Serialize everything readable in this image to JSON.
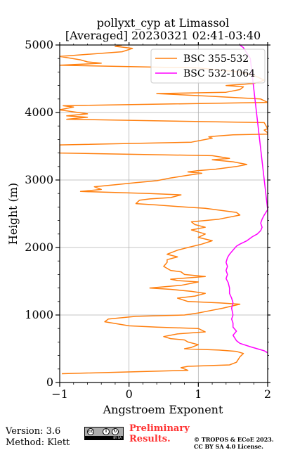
{
  "chart_data": {
    "type": "line",
    "title_line1": "pollyxt_cyp at Limassol",
    "title_line2": "[Averaged] 20230321 02:41-03:40",
    "xlabel": "Angstroem Exponent",
    "ylabel": "Height (m)",
    "xlim": [
      -1,
      2
    ],
    "ylim": [
      0,
      5000
    ],
    "xticks": [
      -1,
      0,
      1,
      2
    ],
    "yticks": [
      0,
      1000,
      2000,
      3000,
      4000,
      5000
    ],
    "grid": true,
    "legend_position": "top-right",
    "series": [
      {
        "name": "BSC 355-532",
        "color": "#ff7f0e",
        "points": [
          [
            -0.97,
            130
          ],
          [
            0.85,
            180
          ],
          [
            0.75,
            220
          ],
          [
            0.85,
            240
          ],
          [
            1.45,
            260
          ],
          [
            1.55,
            300
          ],
          [
            1.6,
            380
          ],
          [
            1.62,
            400
          ],
          [
            1.65,
            430
          ],
          [
            1.55,
            460
          ],
          [
            1.3,
            480
          ],
          [
            0.8,
            500
          ],
          [
            0.9,
            520
          ],
          [
            1.0,
            560
          ],
          [
            0.85,
            600
          ],
          [
            0.8,
            630
          ],
          [
            0.6,
            650
          ],
          [
            0.5,
            680
          ],
          [
            0.7,
            720
          ],
          [
            1.1,
            750
          ],
          [
            1.0,
            800
          ],
          [
            0.4,
            820
          ],
          [
            0.0,
            840
          ],
          [
            -0.35,
            900
          ],
          [
            -0.3,
            940
          ],
          [
            0.1,
            980
          ],
          [
            0.8,
            1000
          ],
          [
            1.0,
            1030
          ],
          [
            1.15,
            1060
          ],
          [
            1.35,
            1100
          ],
          [
            1.6,
            1160
          ],
          [
            1.3,
            1180
          ],
          [
            0.85,
            1200
          ],
          [
            0.7,
            1250
          ],
          [
            0.95,
            1280
          ],
          [
            1.1,
            1320
          ],
          [
            0.9,
            1350
          ],
          [
            0.6,
            1380
          ],
          [
            0.3,
            1400
          ],
          [
            0.75,
            1440
          ],
          [
            1.0,
            1490
          ],
          [
            0.7,
            1510
          ],
          [
            0.6,
            1530
          ],
          [
            1.1,
            1570
          ],
          [
            0.8,
            1600
          ],
          [
            0.75,
            1640
          ],
          [
            0.6,
            1660
          ],
          [
            0.5,
            1720
          ],
          [
            0.55,
            1780
          ],
          [
            0.55,
            1820
          ],
          [
            0.7,
            1860
          ],
          [
            0.55,
            1900
          ],
          [
            0.7,
            1960
          ],
          [
            0.85,
            2000
          ],
          [
            1.05,
            2050
          ],
          [
            1.2,
            2100
          ],
          [
            1.0,
            2150
          ],
          [
            1.1,
            2200
          ],
          [
            0.9,
            2260
          ],
          [
            1.1,
            2300
          ],
          [
            0.95,
            2340
          ],
          [
            0.9,
            2380
          ],
          [
            1.3,
            2420
          ],
          [
            1.6,
            2480
          ],
          [
            1.55,
            2520
          ],
          [
            1.1,
            2580
          ],
          [
            0.8,
            2600
          ],
          [
            0.4,
            2630
          ],
          [
            0.1,
            2650
          ],
          [
            0.15,
            2700
          ],
          [
            0.3,
            2720
          ],
          [
            0.6,
            2740
          ],
          [
            0.75,
            2780
          ],
          [
            0.3,
            2800
          ],
          [
            -0.7,
            2830
          ],
          [
            -0.4,
            2860
          ],
          [
            -0.5,
            2900
          ],
          [
            -0.2,
            2930
          ],
          [
            0.1,
            2960
          ],
          [
            0.4,
            2990
          ],
          [
            0.6,
            3030
          ],
          [
            0.85,
            3070
          ],
          [
            1.05,
            3100
          ],
          [
            0.85,
            3120
          ],
          [
            1.0,
            3140
          ],
          [
            1.25,
            3160
          ],
          [
            1.55,
            3200
          ],
          [
            1.7,
            3230
          ],
          [
            1.5,
            3270
          ],
          [
            1.2,
            3300
          ],
          [
            1.45,
            3320
          ],
          [
            1.2,
            3360
          ],
          [
            -1.0,
            3400
          ],
          [
            -1.0,
            3520
          ],
          [
            0.9,
            3560
          ],
          [
            1.2,
            3620
          ],
          [
            1.15,
            3640
          ],
          [
            1.25,
            3650
          ],
          [
            1.5,
            3670
          ],
          [
            2.0,
            3680
          ],
          [
            2.0,
            3700
          ],
          [
            1.95,
            3740
          ],
          [
            2.0,
            3760
          ],
          [
            1.95,
            3850
          ],
          [
            -0.9,
            3900
          ],
          [
            -0.6,
            3930
          ],
          [
            -0.9,
            3950
          ],
          [
            -0.6,
            3980
          ],
          [
            -1.0,
            4040
          ],
          [
            -0.8,
            4080
          ],
          [
            -0.95,
            4100
          ],
          [
            2.0,
            4150
          ],
          [
            1.9,
            4200
          ],
          [
            1.2,
            4240
          ],
          [
            0.4,
            4280
          ],
          [
            1.4,
            4300
          ],
          [
            1.6,
            4340
          ],
          [
            1.65,
            4380
          ],
          [
            1.4,
            4400
          ],
          [
            1.8,
            4430
          ],
          [
            1.9,
            4460
          ],
          [
            1.95,
            4480
          ],
          [
            1.8,
            4550
          ],
          [
            1.6,
            4600
          ],
          [
            1.0,
            4660
          ],
          [
            -1.0,
            4700
          ],
          [
            -0.4,
            4730
          ],
          [
            -0.6,
            4750
          ],
          [
            -0.7,
            4780
          ],
          [
            -1.0,
            4830
          ],
          [
            -0.1,
            4900
          ],
          [
            0.05,
            4950
          ],
          [
            -0.2,
            4980
          ],
          [
            -0.1,
            5000
          ]
        ]
      },
      {
        "name": "BSC 532-1064",
        "color": "#ff00ff",
        "points": [
          [
            2.0,
            440
          ],
          [
            1.95,
            470
          ],
          [
            1.85,
            500
          ],
          [
            1.75,
            530
          ],
          [
            1.6,
            580
          ],
          [
            1.55,
            620
          ],
          [
            1.5,
            700
          ],
          [
            1.55,
            760
          ],
          [
            1.5,
            820
          ],
          [
            1.5,
            880
          ],
          [
            1.48,
            940
          ],
          [
            1.5,
            1000
          ],
          [
            1.48,
            1100
          ],
          [
            1.5,
            1180
          ],
          [
            1.48,
            1250
          ],
          [
            1.45,
            1320
          ],
          [
            1.45,
            1400
          ],
          [
            1.43,
            1480
          ],
          [
            1.4,
            1540
          ],
          [
            1.42,
            1600
          ],
          [
            1.4,
            1660
          ],
          [
            1.42,
            1720
          ],
          [
            1.4,
            1780
          ],
          [
            1.42,
            1850
          ],
          [
            1.45,
            1900
          ],
          [
            1.5,
            1960
          ],
          [
            1.55,
            2020
          ],
          [
            1.6,
            2050
          ],
          [
            1.7,
            2100
          ],
          [
            1.78,
            2160
          ],
          [
            1.85,
            2200
          ],
          [
            1.9,
            2250
          ],
          [
            1.92,
            2300
          ],
          [
            1.9,
            2360
          ],
          [
            1.92,
            2420
          ],
          [
            1.95,
            2480
          ],
          [
            2.0,
            2560
          ],
          [
            1.75,
            4800
          ],
          [
            1.65,
            4960
          ],
          [
            1.6,
            5000
          ]
        ]
      }
    ]
  },
  "footer": {
    "version": "Version: 3.6",
    "method": "Method: Klett",
    "license_badge_text": "BY SA",
    "preliminary_line1": "Preliminary",
    "preliminary_line2": "Results.",
    "copyright_line1": "© TROPOS & ECoE 2023.",
    "copyright_line2": "CC BY SA 4.0 License.",
    "preliminary_color": "#ff3333"
  }
}
